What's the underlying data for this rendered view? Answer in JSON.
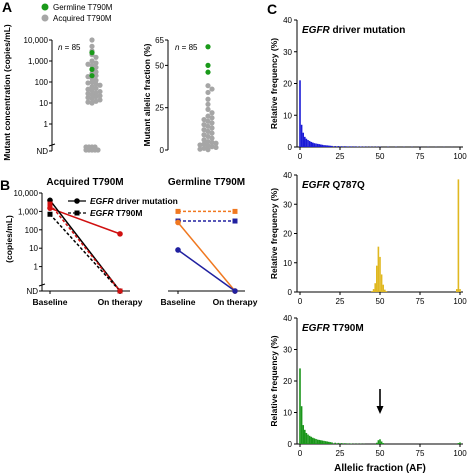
{
  "panel_labels": [
    "A",
    "B",
    "C"
  ],
  "chart_data": [
    {
      "panel": "A",
      "type": "scatter",
      "legend": {
        "placement": "top",
        "entries": [
          {
            "name": "Germline T790M",
            "color": "#1a9a1a"
          },
          {
            "name": "Acquired T790M",
            "color": "#a6a6a6"
          }
        ]
      },
      "ylabel": "Mutant concentration (copies/mL)",
      "yscale": "log",
      "ylim": [
        0.1,
        10000
      ],
      "yticks": [
        "10,000",
        "1,000",
        "100",
        "10",
        "1",
        "ND"
      ],
      "annotation": {
        "prefix": "n",
        "text": " = 85"
      },
      "series": [
        {
          "name": "Acquired T790M",
          "color": "#a6a6a6",
          "y": [
            10000,
            5000,
            3000,
            2000,
            1500,
            1000,
            800,
            700,
            600,
            500,
            400,
            300,
            250,
            200,
            180,
            150,
            120,
            100,
            90,
            80,
            70,
            60,
            50,
            45,
            40,
            35,
            30,
            28,
            25,
            22,
            20,
            18,
            16,
            14,
            12,
            11,
            10
          ]
        },
        {
          "name": "Germline T790M",
          "color": "#1a9a1a",
          "y": [
            2500,
            400,
            200
          ]
        }
      ]
    },
    {
      "panel": "A",
      "type": "scatter",
      "ylabel": "Mutant allelic fraction (%)",
      "ylim": [
        0,
        65
      ],
      "yticks": [
        65,
        50,
        25,
        0
      ],
      "yticklabels": [
        "65",
        "50",
        "25",
        "0"
      ],
      "annotation": {
        "prefix": "n",
        "text": " = 85"
      },
      "series": [
        {
          "name": "Acquired T790M",
          "color": "#a6a6a6",
          "y": [
            38,
            36,
            34,
            30,
            27,
            24,
            22,
            20,
            19,
            18,
            17,
            16,
            15,
            14,
            13,
            12,
            11,
            10,
            9,
            8,
            7,
            6,
            5,
            4.5,
            4,
            3.5,
            3,
            2.5,
            2,
            1.5,
            1,
            0.5,
            0.2
          ]
        },
        {
          "name": "Germline T790M",
          "color": "#1a9a1a",
          "y": [
            61,
            50,
            46
          ]
        }
      ]
    },
    {
      "panel": "B",
      "type": "line",
      "ylabel": "(copies/mL)",
      "yscale": "log",
      "ylim": [
        0.1,
        10000
      ],
      "yticks": [
        "10,000",
        "1,000",
        "100",
        "10",
        "1",
        "ND"
      ],
      "categories": [
        "Baseline",
        "On therapy"
      ],
      "groups": [
        {
          "title": "Acquired T790M",
          "series": [
            {
              "style": "solid",
              "color": "#d01010",
              "values": [
                1500,
                60
              ]
            },
            {
              "style": "solid",
              "color": "#000000",
              "values": [
                4000,
                0.1
              ]
            },
            {
              "style": "dashed",
              "color": "#000000",
              "values": [
                700,
                0.1
              ]
            },
            {
              "style": "dashed",
              "color": "#d01010",
              "values": [
                2500,
                0.1
              ]
            }
          ]
        },
        {
          "title": "Germline T790M",
          "series": [
            {
              "style": "dashed",
              "color": "#f07820",
              "values": [
                1000,
                1000
              ]
            },
            {
              "style": "dashed",
              "color": "#2020a0",
              "values": [
                300,
                300
              ]
            },
            {
              "style": "solid",
              "color": "#f07820",
              "values": [
                250,
                0.1
              ]
            },
            {
              "style": "solid",
              "color": "#2020a0",
              "values": [
                8,
                0.1
              ]
            }
          ]
        }
      ],
      "legend": {
        "placement": "top-right",
        "entries": [
          {
            "style": "solid",
            "italic": "EGFR",
            "rest": " driver mutation"
          },
          {
            "style": "dashed",
            "italic": "EGFR",
            "rest": " T790M"
          }
        ]
      }
    },
    {
      "panel": "C",
      "type": "bar",
      "subtitle_italic": "EGFR",
      "subtitle_rest": " driver mutation",
      "ylabel": "Relative frequency (%)",
      "ylim": [
        0,
        40
      ],
      "yticks": [
        0,
        10,
        20,
        30,
        40
      ],
      "xlim": [
        0,
        100
      ],
      "xticks": [
        0,
        25,
        50,
        75,
        100
      ],
      "color": "#1a1ad6",
      "bins": [
        [
          0,
          21
        ],
        [
          1,
          7
        ],
        [
          2,
          4.5
        ],
        [
          3,
          3.2
        ],
        [
          4,
          2.6
        ],
        [
          5,
          2.2
        ],
        [
          6,
          1.9
        ],
        [
          7,
          1.6
        ],
        [
          8,
          1.4
        ],
        [
          9,
          1.2
        ],
        [
          10,
          1.1
        ],
        [
          11,
          1.0
        ],
        [
          12,
          0.9
        ],
        [
          13,
          0.8
        ],
        [
          14,
          0.7
        ],
        [
          15,
          0.6
        ],
        [
          16,
          0.55
        ],
        [
          17,
          0.5
        ],
        [
          18,
          0.45
        ],
        [
          19,
          0.4
        ],
        [
          20,
          0.35
        ],
        [
          22,
          0.3
        ],
        [
          24,
          0.3
        ],
        [
          26,
          0.25
        ],
        [
          28,
          0.25
        ],
        [
          30,
          0.2
        ],
        [
          32,
          0.2
        ],
        [
          34,
          0.2
        ],
        [
          36,
          0.15
        ],
        [
          38,
          0.15
        ],
        [
          40,
          0.15
        ],
        [
          42,
          0.1
        ],
        [
          44,
          0.1
        ],
        [
          46,
          0.1
        ],
        [
          48,
          0.1
        ],
        [
          50,
          0.1
        ],
        [
          55,
          0.08
        ],
        [
          60,
          0.08
        ],
        [
          65,
          0.06
        ],
        [
          70,
          0.06
        ],
        [
          75,
          0.05
        ],
        [
          80,
          0.05
        ],
        [
          85,
          0.04
        ],
        [
          90,
          0.04
        ],
        [
          95,
          0.03
        ]
      ]
    },
    {
      "panel": "C",
      "type": "bar",
      "subtitle_italic": "EGFR",
      "subtitle_rest": " Q787Q",
      "ylabel": "Relative frequency (%)",
      "ylim": [
        0,
        40
      ],
      "yticks": [
        0,
        10,
        20,
        30,
        40
      ],
      "xlim": [
        0,
        100
      ],
      "xticks": [
        0,
        25,
        50,
        75,
        100
      ],
      "color": "#e0b820",
      "bins": [
        [
          45,
          0.3
        ],
        [
          46,
          1.0
        ],
        [
          47,
          3.0
        ],
        [
          48,
          9.0
        ],
        [
          49,
          15.5
        ],
        [
          50,
          12.0
        ],
        [
          51,
          6.0
        ],
        [
          52,
          2.5
        ],
        [
          53,
          0.8
        ],
        [
          54,
          0.3
        ],
        [
          98,
          1.0
        ],
        [
          99,
          38.5
        ],
        [
          100,
          1.0
        ]
      ]
    },
    {
      "panel": "C",
      "type": "bar",
      "subtitle_italic": "EGFR",
      "subtitle_rest": " T790M",
      "ylabel": "Relative frequency (%)",
      "ylim": [
        0,
        40
      ],
      "yticks": [
        0,
        10,
        20,
        30,
        40
      ],
      "xlim": [
        0,
        100
      ],
      "xticks": [
        0,
        25,
        50,
        75,
        100
      ],
      "xlabel": "Allelic fraction (AF)",
      "color": "#1a961a",
      "arrow_at": 50,
      "bins": [
        [
          0,
          24
        ],
        [
          1,
          12
        ],
        [
          2,
          6
        ],
        [
          3,
          4.5
        ],
        [
          4,
          3.5
        ],
        [
          5,
          3
        ],
        [
          6,
          2.6
        ],
        [
          7,
          2.3
        ],
        [
          8,
          2
        ],
        [
          9,
          1.8
        ],
        [
          10,
          1.6
        ],
        [
          11,
          1.4
        ],
        [
          12,
          1.3
        ],
        [
          13,
          1.2
        ],
        [
          14,
          1.1
        ],
        [
          15,
          1
        ],
        [
          16,
          0.9
        ],
        [
          17,
          0.8
        ],
        [
          18,
          0.7
        ],
        [
          19,
          0.6
        ],
        [
          20,
          0.5
        ],
        [
          22,
          0.4
        ],
        [
          24,
          0.35
        ],
        [
          26,
          0.3
        ],
        [
          28,
          0.25
        ],
        [
          30,
          0.2
        ],
        [
          32,
          0.15
        ],
        [
          34,
          0.1
        ],
        [
          36,
          0.1
        ],
        [
          38,
          0.08
        ],
        [
          40,
          0.06
        ],
        [
          48,
          0.4
        ],
        [
          49,
          1.2
        ],
        [
          50,
          1.5
        ],
        [
          51,
          0.8
        ],
        [
          52,
          0.3
        ],
        [
          99,
          0.3
        ],
        [
          100,
          0.5
        ]
      ]
    }
  ]
}
